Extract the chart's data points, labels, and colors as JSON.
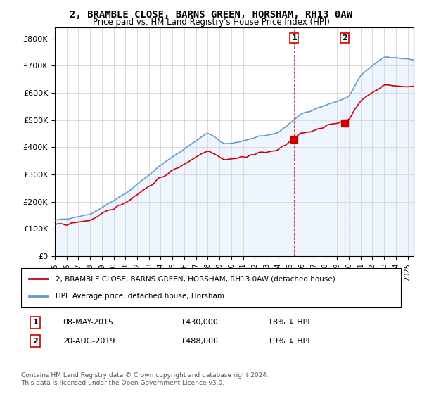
{
  "title": "2, BRAMBLE CLOSE, BARNS GREEN, HORSHAM, RH13 0AW",
  "subtitle": "Price paid vs. HM Land Registry's House Price Index (HPI)",
  "ylabel_ticks": [
    "£0",
    "£100K",
    "£200K",
    "£300K",
    "£400K",
    "£500K",
    "£600K",
    "£700K",
    "£800K"
  ],
  "ylim": [
    0,
    840000
  ],
  "xlim_start": 1995,
  "xlim_end": 2025.5,
  "sale1_date": 2015.35,
  "sale1_price": 430000,
  "sale1_label": "1",
  "sale2_date": 2019.63,
  "sale2_price": 488000,
  "sale2_label": "2",
  "legend_line1": "2, BRAMBLE CLOSE, BARNS GREEN, HORSHAM, RH13 0AW (detached house)",
  "legend_line2": "HPI: Average price, detached house, Horsham",
  "table_row1": "1    08-MAY-2015         £430,000         18% ↓ HPI",
  "table_row2": "2    20-AUG-2019         £488,000         19% ↓ HPI",
  "footnote": "Contains HM Land Registry data © Crown copyright and database right 2024.\nThis data is licensed under the Open Government Licence v3.0.",
  "red_color": "#cc0000",
  "blue_color": "#6699cc",
  "blue_fill": "#cce0ff",
  "background_color": "#ffffff",
  "grid_color": "#cccccc"
}
